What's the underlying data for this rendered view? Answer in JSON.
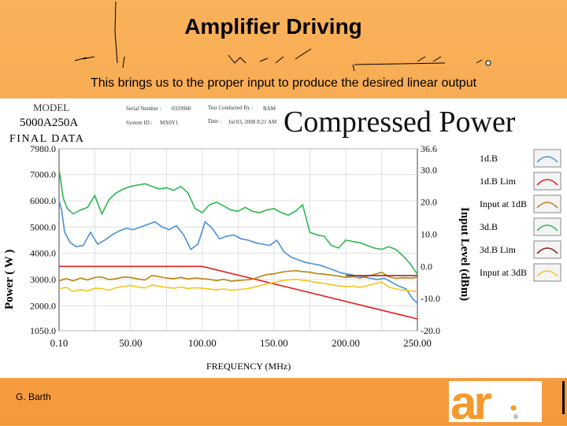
{
  "slide": {
    "title": "Amplifier Driving",
    "subtitle": "This brings us to the proper input to produce the desired linear output",
    "footer": "G. Barth"
  },
  "chart_header": {
    "model_label": "MODEL",
    "model_value": "5000A250A",
    "final_data": "FINAL DATA",
    "serial_label": "Serial Number :",
    "serial_value": "0329960",
    "tested_by_label": "Test Conducted By :",
    "tested_by_value": "BAM",
    "system_id_label": "System ID :",
    "system_id_value": "MX0Y1",
    "date_label": "Date :",
    "date_value": "Jul 03, 2008 8:21 AM"
  },
  "chart_data": {
    "type": "line",
    "title": "Compressed Power",
    "xlabel": "FREQUENCY (MHz)",
    "ylabel": "Power ( W )",
    "y2label": "Input Level (dBm)",
    "xlim": [
      0.1,
      250
    ],
    "ylim": [
      1050,
      7980
    ],
    "y2lim": [
      -20,
      36.6
    ],
    "x_ticks": [
      "0.10",
      "50.00",
      "100.00",
      "150.00",
      "200.00",
      "250.00"
    ],
    "x_tick_values": [
      0.1,
      50,
      100,
      150,
      200,
      250
    ],
    "y_ticks": [
      "1050.0",
      "2000.0",
      "3000.0",
      "4000.0",
      "5000.0",
      "6000.0",
      "7000.0",
      "7980.0"
    ],
    "y_tick_values": [
      1050,
      2000,
      3000,
      4000,
      5000,
      6000,
      7000,
      7980
    ],
    "y2_ticks": [
      "-20.0",
      "-10.0",
      "0.0",
      "10.0",
      "20.0",
      "30.0",
      "36.6"
    ],
    "y2_tick_values": [
      -20,
      -10,
      0,
      10,
      20,
      30,
      36.6
    ],
    "grid": true,
    "legend_position": "right",
    "series": [
      {
        "name": "1d.B",
        "axis": "left",
        "color": "#4a90d9",
        "x": [
          0.1,
          2,
          4,
          8,
          12,
          17,
          22,
          27,
          32,
          37,
          42,
          47,
          52,
          57,
          62,
          67,
          72,
          77,
          82,
          87,
          92,
          97,
          102,
          107,
          112,
          117,
          122,
          127,
          132,
          137,
          142,
          147,
          152,
          157,
          162,
          167,
          172,
          177,
          182,
          187,
          192,
          197,
          202,
          207,
          212,
          217,
          222,
          227,
          232,
          237,
          242,
          247,
          250
        ],
        "values": [
          6000,
          5600,
          4800,
          4400,
          4250,
          4300,
          4800,
          4350,
          4500,
          4700,
          4850,
          4950,
          4900,
          5000,
          5100,
          5200,
          5000,
          4900,
          5050,
          4700,
          4150,
          4350,
          5200,
          4950,
          4550,
          4650,
          4700,
          4550,
          4500,
          4400,
          4350,
          4300,
          4500,
          4050,
          3850,
          3750,
          3650,
          3600,
          3550,
          3450,
          3350,
          3250,
          3200,
          3150,
          3100,
          3050,
          3000,
          3050,
          2900,
          2750,
          2650,
          2250,
          2100
        ]
      },
      {
        "name": "1d.B Lim",
        "axis": "left",
        "color": "#e02020",
        "x": [
          0.1,
          100,
          250
        ],
        "values": [
          3500,
          3500,
          1500
        ]
      },
      {
        "name": "Input at 1dB",
        "axis": "right",
        "color": "#b8860b",
        "x": [
          0.1,
          5,
          10,
          15,
          20,
          25,
          30,
          35,
          40,
          45,
          50,
          55,
          60,
          65,
          70,
          75,
          80,
          85,
          90,
          95,
          100,
          105,
          110,
          115,
          120,
          125,
          130,
          135,
          140,
          145,
          150,
          155,
          160,
          165,
          170,
          175,
          180,
          185,
          190,
          195,
          200,
          205,
          210,
          215,
          220,
          225,
          230,
          235,
          240,
          245,
          250
        ],
        "values": [
          -4.5,
          -3.8,
          -4.5,
          -3.6,
          -4.2,
          -3.4,
          -3.3,
          -4.1,
          -3.8,
          -3.3,
          -3.4,
          -3.9,
          -4.2,
          -2.8,
          -3.2,
          -3.6,
          -3.8,
          -3.4,
          -3.9,
          -3.6,
          -3.8,
          -4.0,
          -4.4,
          -4.0,
          -4.6,
          -4.4,
          -4.2,
          -4.0,
          -3.2,
          -2.5,
          -2.3,
          -1.8,
          -1.5,
          -1.3,
          -1.6,
          -1.8,
          -2.2,
          -2.4,
          -2.7,
          -3.0,
          -3.4,
          -3.2,
          -3.6,
          -3.0,
          -2.5,
          -1.8,
          -3.2,
          -3.7,
          -3.5,
          -3.6,
          -3.4
        ]
      },
      {
        "name": "3d.B",
        "axis": "left",
        "color": "#2db84d",
        "x": [
          0.1,
          3,
          6,
          10,
          15,
          20,
          25,
          30,
          35,
          40,
          45,
          50,
          55,
          60,
          65,
          70,
          75,
          80,
          85,
          90,
          95,
          100,
          105,
          110,
          115,
          120,
          125,
          130,
          135,
          140,
          145,
          150,
          155,
          160,
          165,
          170,
          175,
          180,
          185,
          190,
          195,
          200,
          205,
          210,
          215,
          220,
          225,
          230,
          235,
          240,
          245,
          250
        ],
        "values": [
          7200,
          6100,
          5700,
          5500,
          5650,
          5750,
          6200,
          5500,
          6050,
          6300,
          6450,
          6550,
          6600,
          6650,
          6550,
          6450,
          6500,
          6400,
          6550,
          6300,
          5700,
          5550,
          5850,
          5950,
          5800,
          5650,
          5600,
          5750,
          5600,
          5550,
          5650,
          5700,
          5550,
          5450,
          5600,
          5850,
          4800,
          4700,
          4650,
          4300,
          4200,
          4500,
          4450,
          4400,
          4300,
          4200,
          4150,
          4250,
          4150,
          3900,
          3600,
          3200
        ]
      },
      {
        "name": "3d.B Lim",
        "axis": "left",
        "color": "#8b1a1a",
        "x": [
          200,
          250
        ],
        "values": [
          3150,
          3150
        ]
      },
      {
        "name": "Input at 3dB",
        "axis": "right",
        "color": "#f5c518",
        "x": [
          0.1,
          5,
          10,
          15,
          20,
          25,
          30,
          35,
          40,
          45,
          50,
          55,
          60,
          65,
          70,
          75,
          80,
          85,
          90,
          95,
          100,
          105,
          110,
          115,
          120,
          125,
          130,
          135,
          140,
          145,
          150,
          155,
          160,
          165,
          170,
          175,
          180,
          185,
          190,
          195,
          200,
          205,
          210,
          215,
          220,
          225,
          230,
          235,
          240,
          245,
          250
        ],
        "values": [
          -7.0,
          -6.5,
          -7.8,
          -7.2,
          -7.6,
          -6.8,
          -6.9,
          -7.4,
          -6.6,
          -6.2,
          -5.9,
          -6.4,
          -6.7,
          -5.8,
          -6.2,
          -6.5,
          -6.8,
          -6.4,
          -6.9,
          -6.6,
          -6.8,
          -7.0,
          -7.3,
          -7.0,
          -7.4,
          -7.2,
          -7.0,
          -6.6,
          -6.0,
          -5.4,
          -5.0,
          -4.5,
          -4.2,
          -4.0,
          -4.3,
          -4.6,
          -5.0,
          -5.3,
          -5.7,
          -6.0,
          -6.3,
          -6.1,
          -6.5,
          -6.0,
          -5.4,
          -4.8,
          -6.4,
          -7.0,
          -7.3,
          -7.6,
          -7.8
        ]
      }
    ]
  }
}
